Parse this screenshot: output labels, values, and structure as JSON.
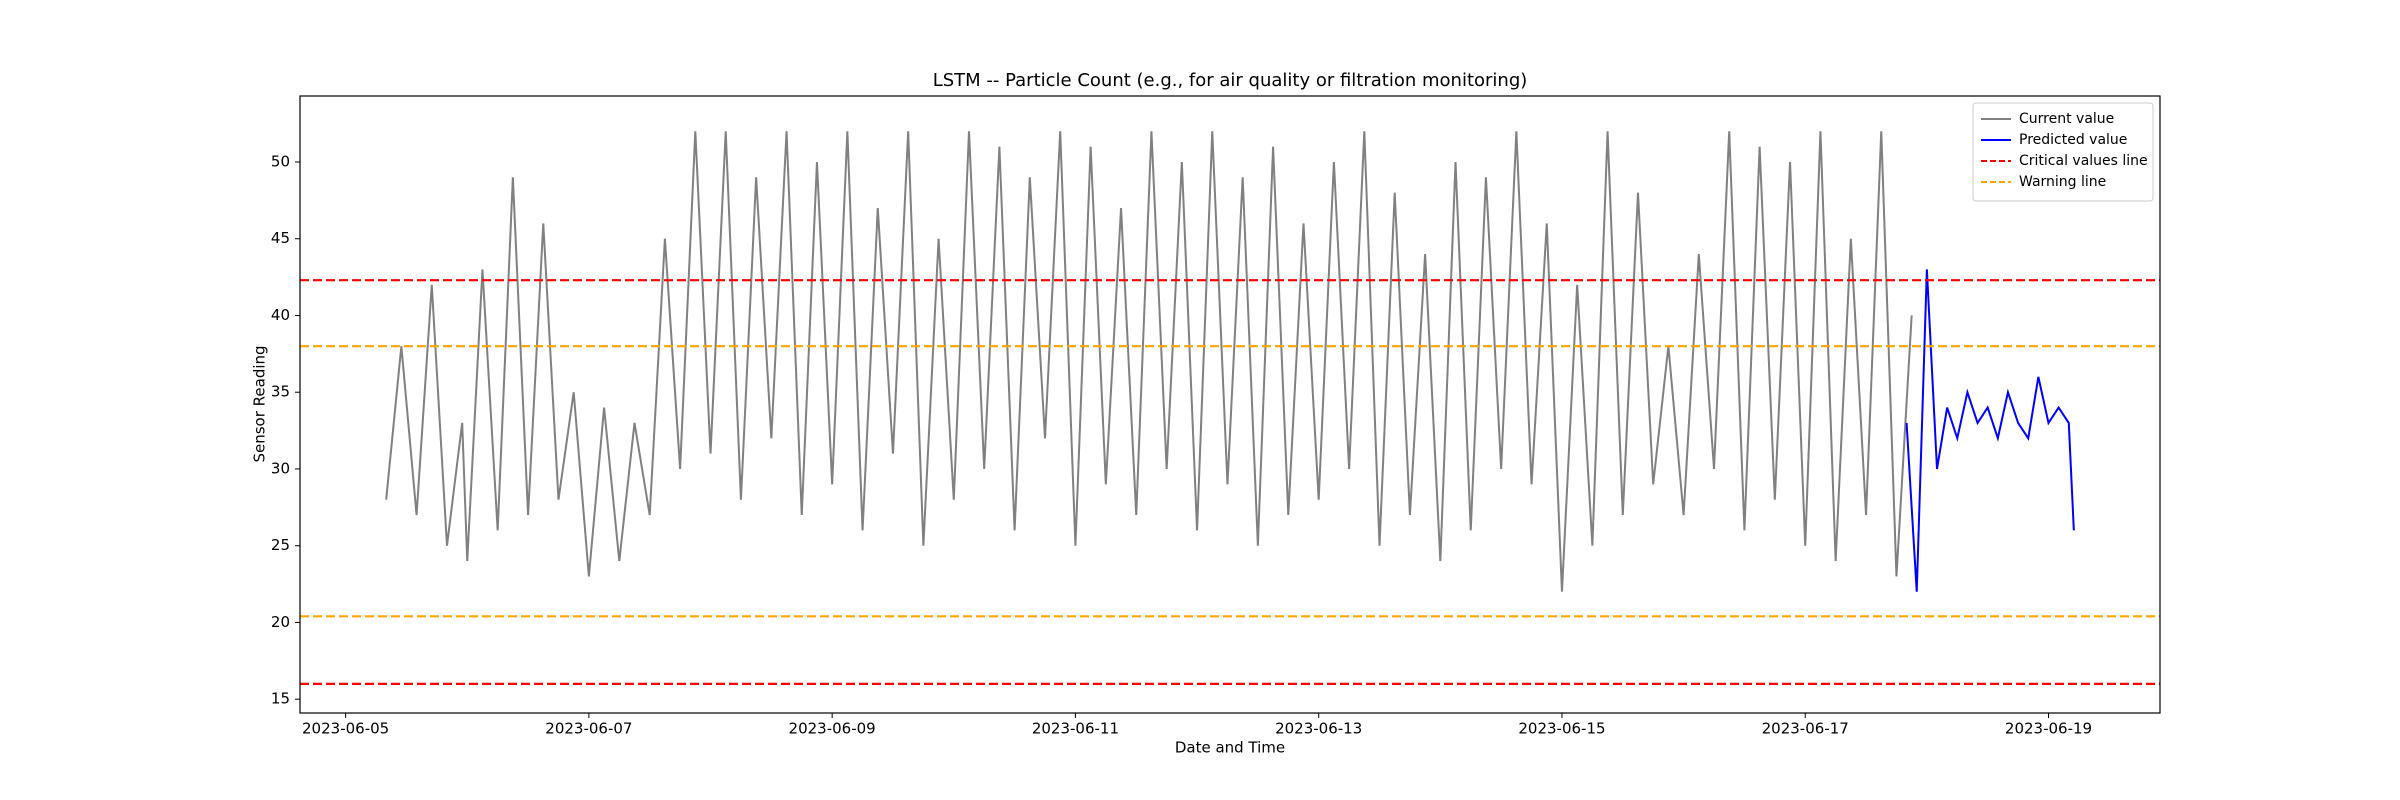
{
  "chart_data": {
    "type": "line",
    "title": "LSTM -- Particle Count (e.g., for air quality or filtration monitoring)",
    "xlabel": "Date and Time",
    "ylabel": "Sensor Reading",
    "xlim": [
      "2023-06-04T15:00",
      "2023-06-19T22:00"
    ],
    "xticks": [
      "2023-06-05",
      "2023-06-07",
      "2023-06-09",
      "2023-06-11",
      "2023-06-13",
      "2023-06-15",
      "2023-06-17",
      "2023-06-19"
    ],
    "ylim": [
      14.1,
      54.3
    ],
    "yticks": [
      15,
      20,
      25,
      30,
      35,
      40,
      45,
      50
    ],
    "grid": false,
    "legend": "upper right",
    "series": [
      {
        "name": "Current value",
        "color": "#808080",
        "x": [
          "2023-06-05T08:00",
          "2023-06-05T11:00",
          "2023-06-05T14:00",
          "2023-06-05T17:00",
          "2023-06-05T20:00",
          "2023-06-05T23:00",
          "2023-06-06T00:00",
          "2023-06-06T03:00",
          "2023-06-06T06:00",
          "2023-06-06T09:00",
          "2023-06-06T12:00",
          "2023-06-06T15:00",
          "2023-06-06T18:00",
          "2023-06-06T21:00",
          "2023-06-07T00:00",
          "2023-06-07T03:00",
          "2023-06-07T06:00",
          "2023-06-07T09:00",
          "2023-06-07T12:00",
          "2023-06-07T15:00",
          "2023-06-07T18:00",
          "2023-06-07T21:00",
          "2023-06-08T00:00",
          "2023-06-08T03:00",
          "2023-06-08T06:00",
          "2023-06-08T09:00",
          "2023-06-08T12:00",
          "2023-06-08T15:00",
          "2023-06-08T18:00",
          "2023-06-08T21:00",
          "2023-06-09T00:00",
          "2023-06-09T03:00",
          "2023-06-09T06:00",
          "2023-06-09T09:00",
          "2023-06-09T12:00",
          "2023-06-09T15:00",
          "2023-06-09T18:00",
          "2023-06-09T21:00",
          "2023-06-10T00:00",
          "2023-06-10T03:00",
          "2023-06-10T06:00",
          "2023-06-10T09:00",
          "2023-06-10T12:00",
          "2023-06-10T15:00",
          "2023-06-10T18:00",
          "2023-06-10T21:00",
          "2023-06-11T00:00",
          "2023-06-11T03:00",
          "2023-06-11T06:00",
          "2023-06-11T09:00",
          "2023-06-11T12:00",
          "2023-06-11T15:00",
          "2023-06-11T18:00",
          "2023-06-11T21:00",
          "2023-06-12T00:00",
          "2023-06-12T03:00",
          "2023-06-12T06:00",
          "2023-06-12T09:00",
          "2023-06-12T12:00",
          "2023-06-12T15:00",
          "2023-06-12T18:00",
          "2023-06-12T21:00",
          "2023-06-13T00:00",
          "2023-06-13T03:00",
          "2023-06-13T06:00",
          "2023-06-13T09:00",
          "2023-06-13T12:00",
          "2023-06-13T15:00",
          "2023-06-13T18:00",
          "2023-06-13T21:00",
          "2023-06-14T00:00",
          "2023-06-14T03:00",
          "2023-06-14T06:00",
          "2023-06-14T09:00",
          "2023-06-14T12:00",
          "2023-06-14T15:00",
          "2023-06-14T18:00",
          "2023-06-14T21:00",
          "2023-06-15T00:00",
          "2023-06-15T03:00",
          "2023-06-15T06:00",
          "2023-06-15T09:00",
          "2023-06-15T12:00",
          "2023-06-15T15:00",
          "2023-06-15T18:00",
          "2023-06-15T21:00",
          "2023-06-16T00:00",
          "2023-06-16T03:00",
          "2023-06-16T06:00",
          "2023-06-16T09:00",
          "2023-06-16T12:00",
          "2023-06-16T15:00",
          "2023-06-16T18:00",
          "2023-06-16T21:00",
          "2023-06-17T00:00",
          "2023-06-17T03:00",
          "2023-06-17T06:00",
          "2023-06-17T09:00",
          "2023-06-17T12:00",
          "2023-06-17T15:00",
          "2023-06-17T18:00",
          "2023-06-17T21:00"
        ],
        "values": [
          28,
          38,
          27,
          42,
          25,
          33,
          24,
          43,
          26,
          49,
          27,
          46,
          28,
          35,
          23,
          34,
          24,
          33,
          27,
          45,
          30,
          52,
          31,
          52,
          28,
          49,
          32,
          52,
          27,
          50,
          29,
          52,
          26,
          47,
          31,
          52,
          25,
          45,
          28,
          52,
          30,
          51,
          26,
          49,
          32,
          52,
          25,
          51,
          29,
          47,
          27,
          52,
          30,
          50,
          26,
          52,
          29,
          49,
          25,
          51,
          27,
          46,
          28,
          50,
          30,
          52,
          25,
          48,
          27,
          44,
          24,
          50,
          26,
          49,
          30,
          52,
          29,
          46,
          22,
          42,
          25,
          52,
          27,
          48,
          29,
          38,
          27,
          44,
          30,
          52,
          26,
          51,
          28,
          50,
          25,
          52,
          24,
          45,
          27,
          52,
          23,
          40
        ]
      },
      {
        "name": "Predicted value",
        "color": "#0000ff",
        "x": [
          "2023-06-17T20:00",
          "2023-06-17T22:00",
          "2023-06-18T00:00",
          "2023-06-18T02:00",
          "2023-06-18T04:00",
          "2023-06-18T06:00",
          "2023-06-18T08:00",
          "2023-06-18T10:00",
          "2023-06-18T12:00",
          "2023-06-18T14:00",
          "2023-06-18T16:00",
          "2023-06-18T18:00",
          "2023-06-18T20:00",
          "2023-06-18T22:00",
          "2023-06-19T00:00",
          "2023-06-19T02:00",
          "2023-06-19T04:00",
          "2023-06-19T05:00"
        ],
        "values": [
          33,
          22,
          43,
          30,
          34,
          32,
          35,
          33,
          34,
          32,
          35,
          33,
          32,
          36,
          33,
          34,
          33,
          26
        ]
      }
    ],
    "hlines": [
      {
        "name": "Critical values line",
        "color": "#ff0000",
        "values": [
          42.3,
          16.0
        ]
      },
      {
        "name": "Warning line",
        "color": "#ffa500",
        "values": [
          38.0,
          20.4
        ]
      }
    ]
  }
}
